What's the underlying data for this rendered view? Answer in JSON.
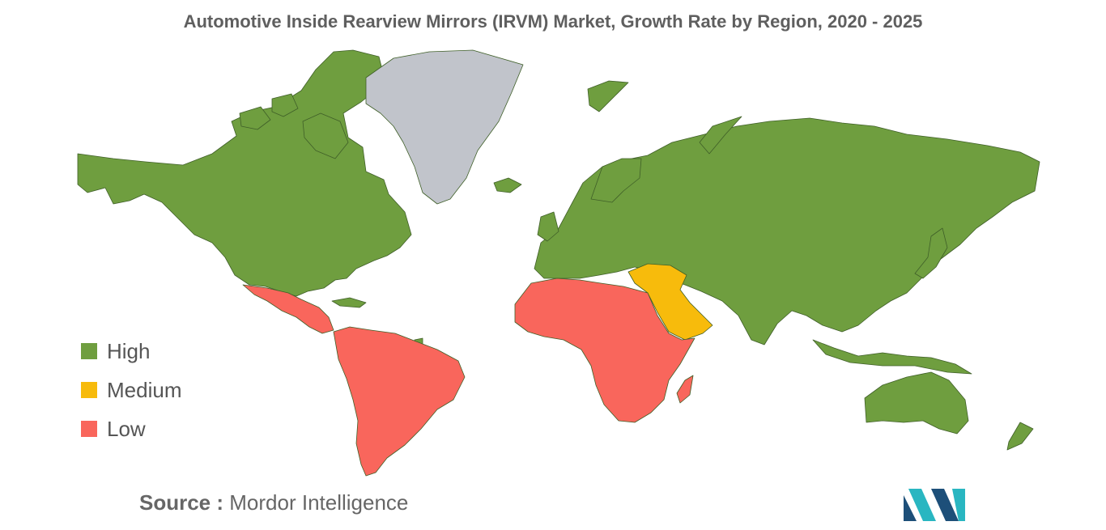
{
  "title": "Automotive Inside Rearview Mirrors (IRVM) Market, Growth Rate by Region, 2020 - 2025",
  "colors": {
    "high": "#6f9e3f",
    "medium": "#f7bb0c",
    "low": "#f9665c",
    "no_data": "#c1c4cb",
    "logo_dark": "#1d4f79",
    "logo_teal": "#29b6c1"
  },
  "legend": {
    "items": [
      {
        "label": "High",
        "color": "#6f9e3f"
      },
      {
        "label": "Medium",
        "color": "#f7bb0c"
      },
      {
        "label": "Low",
        "color": "#f9665c"
      }
    ]
  },
  "regions": [
    {
      "name": "North America",
      "category": "High"
    },
    {
      "name": "Europe",
      "category": "High"
    },
    {
      "name": "Asia-Pacific",
      "category": "High"
    },
    {
      "name": "Middle East",
      "category": "Medium"
    },
    {
      "name": "Latin America",
      "category": "Low"
    },
    {
      "name": "Africa",
      "category": "Low"
    }
  ],
  "source": {
    "key": "Source :",
    "value": "Mordor Intelligence"
  }
}
